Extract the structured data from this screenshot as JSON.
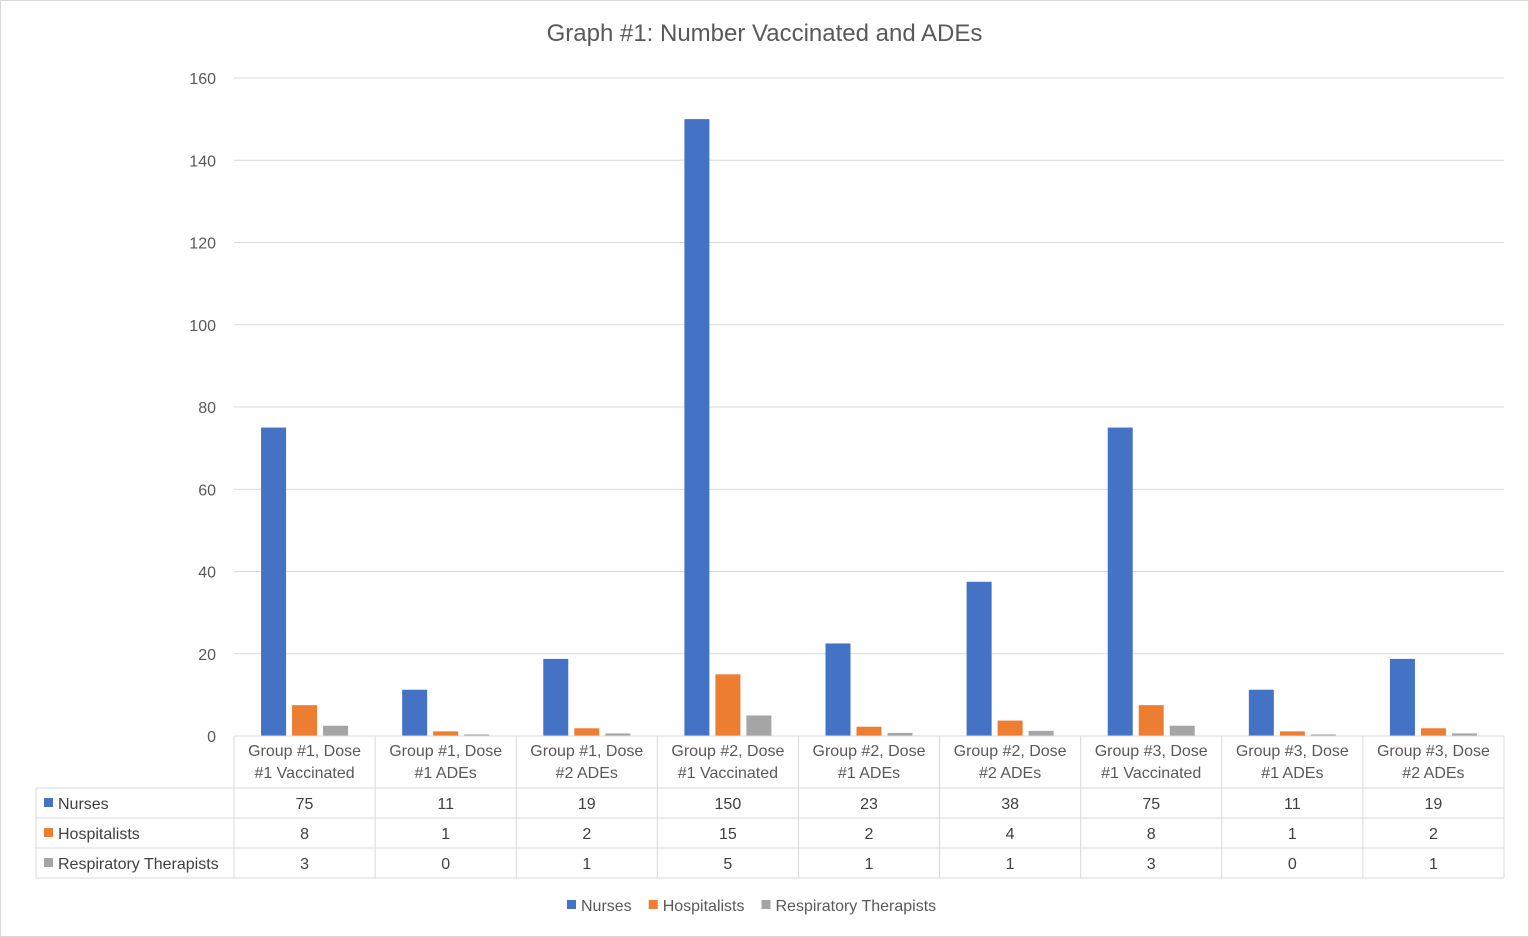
{
  "chart_data": {
    "type": "bar",
    "title": "Graph #1: Number Vaccinated and ADEs",
    "xlabel": "",
    "ylabel": "",
    "ylim": [
      0,
      160
    ],
    "yticks": [
      0,
      20,
      40,
      60,
      80,
      100,
      120,
      140,
      160
    ],
    "grid": true,
    "legend": "bottom",
    "data_table": true,
    "categories": [
      [
        "Group #1, Dose",
        "#1 Vaccinated"
      ],
      [
        "Group #1, Dose",
        "#1 ADEs"
      ],
      [
        "Group #1, Dose",
        "#2 ADEs"
      ],
      [
        "Group #2, Dose",
        "#1 Vaccinated"
      ],
      [
        "Group #2, Dose",
        "#1 ADEs"
      ],
      [
        "Group #2, Dose",
        "#2 ADEs"
      ],
      [
        "Group #3, Dose",
        "#1 Vaccinated"
      ],
      [
        "Group #3, Dose",
        "#1 ADEs"
      ],
      [
        "Group #3, Dose",
        "#2 ADEs"
      ]
    ],
    "series": [
      {
        "name": "Nurses",
        "color": "#4472c4",
        "values": [
          75,
          11.25,
          18.75,
          150,
          22.5,
          37.5,
          75,
          11.25,
          18.75
        ],
        "labels": [
          "75",
          "11",
          "19",
          "150",
          "23",
          "38",
          "75",
          "11",
          "19"
        ]
      },
      {
        "name": "Hospitalists",
        "color": "#ed7d31",
        "values": [
          7.5,
          1.125,
          1.875,
          15,
          2.25,
          3.75,
          7.5,
          1.125,
          1.875
        ],
        "labels": [
          "8",
          "1",
          "2",
          "15",
          "2",
          "4",
          "8",
          "1",
          "2"
        ]
      },
      {
        "name": "Respiratory Therapists",
        "color": "#a5a5a5",
        "values": [
          2.5,
          0.375,
          0.625,
          5,
          0.75,
          1.25,
          2.5,
          0.375,
          0.625
        ],
        "labels": [
          "3",
          "0",
          "1",
          "5",
          "1",
          "1",
          "3",
          "0",
          "1"
        ]
      }
    ]
  }
}
